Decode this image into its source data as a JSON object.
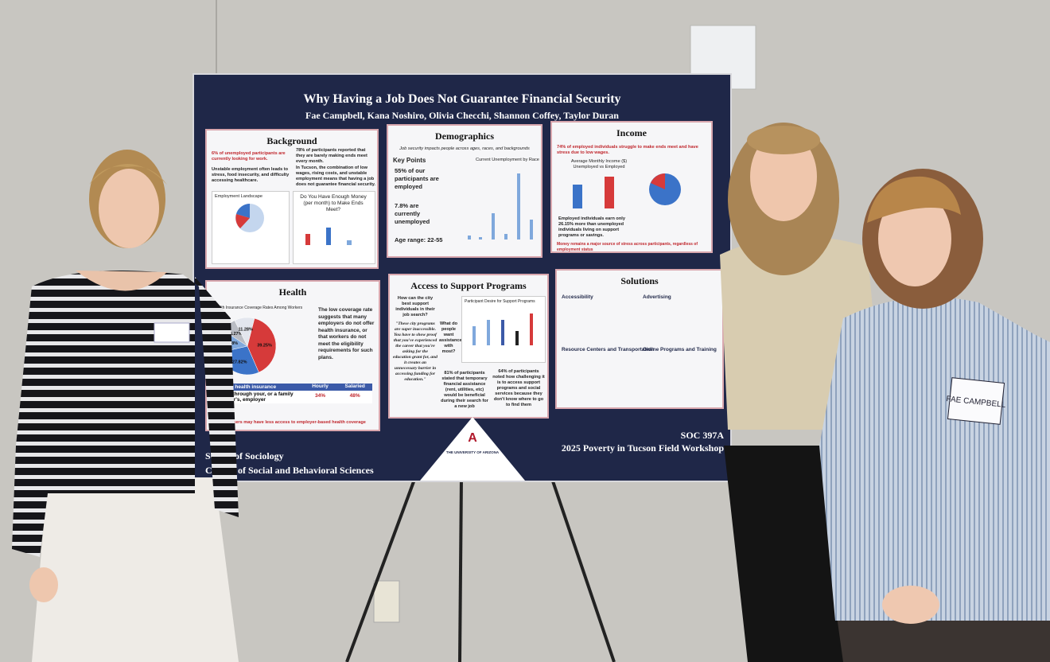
{
  "poster": {
    "title": "Why Having a Job Does Not Guarantee Financial Security",
    "authors": "Fae Campbell, Kana Noshiro, Olivia Checchi, Shannon Coffey, Taylor Duran",
    "background": {
      "heading": "Background",
      "points": [
        "6% of unemployed participants are currently looking for work.",
        "Unstable employment often leads to stress, food insecurity, and difficulty accessing healthcare.",
        "78% of participants reported that they are barely making ends meet every month.",
        "In Tucson, the combination of low wages, rising costs, and unstable employment means that having a job does not guarantee financial security."
      ],
      "chart_titles": [
        "Employment Landscape",
        "Do You Have Enough Money (per month) to Make Ends Meet?"
      ]
    },
    "demographics": {
      "heading": "Demographics",
      "subtitle": "Job security impacts people across ages, races, and backgrounds",
      "key_points_heading": "Key Points",
      "points": [
        "55% of our participants are employed",
        "7.8% are currently unemployed",
        "Age range: 22-55"
      ],
      "chart_title": "Current Unemployment by Race"
    },
    "income": {
      "heading": "Income",
      "summary": "74% of employed individuals struggle to make ends meet and have stress due to low wages.",
      "chart_title": "Average Monthly Income ($) Unemployed vs Employed",
      "note": "Employed individuals earn only 26.15% more than unemployed individuals living on support programs or savings.",
      "footer_note": "Money remains a major source of stress across participants, regardless of employment status"
    },
    "health": {
      "heading": "Health",
      "chart_title": "Health Insurance Coverage Rates Among Workers",
      "pie": {
        "values": [
          39.25,
          27.82,
          12.78,
          8.27,
          11.28
        ],
        "value_labels": [
          "39.25%",
          "27.82%",
          "12.78%",
          "8.27%",
          "11.28%"
        ],
        "colors": [
          "#d63a3a",
          "#3b73c8",
          "#7fa8dc",
          "#b9bcc4",
          "#e3e6ee"
        ]
      },
      "text": "The low coverage rate suggests that many employers do not offer health insurance, or that workers do not meet the eligibility requirements for such plans.",
      "table": {
        "header": [
          "Type of health insurance",
          "Hourly",
          "Salaried"
        ],
        "rows": [
          [
            "A plan through your, or a family member's, employer",
            "34%",
            "48%"
          ]
        ]
      },
      "footer_note": "Hourly workers may have less access to employer-based health coverage"
    },
    "access": {
      "heading": "Access to Support Programs",
      "question": "How can the city best support individuals in their job search?",
      "quote": "\"These city programs are super inaccessible. You have to show proof that you've experienced the career that you're asking for the education grant for, and it creates an unnecessary barrier in accessing funding for education.\"",
      "side_question": "What do people want assistance with most?",
      "chart_title": "Participant Desire for Support Programs",
      "stats": [
        "81% of participants stated that temporary financial assistance (rent, utilities, etc) would be beneficial during their search for a new job",
        "64% of participants noted how challenging it is to access support programs and social services because they don't know where to go to find them"
      ]
    },
    "solutions": {
      "heading": "Solutions",
      "subheadings": [
        "Accessibility",
        "Advertising",
        "Resource Centers and Transportation",
        "Online Programs and Training"
      ]
    },
    "footer": {
      "left": [
        "School of Sociology",
        "College of Social and Behavioral Sciences"
      ],
      "course": "SOC 397A",
      "workshop": "2025 Poverty in Tucson Field Workshop",
      "logo": "A",
      "university": "THE UNIVERSITY OF ARIZONA"
    }
  },
  "name_tag": "FAE CAMPBELL"
}
